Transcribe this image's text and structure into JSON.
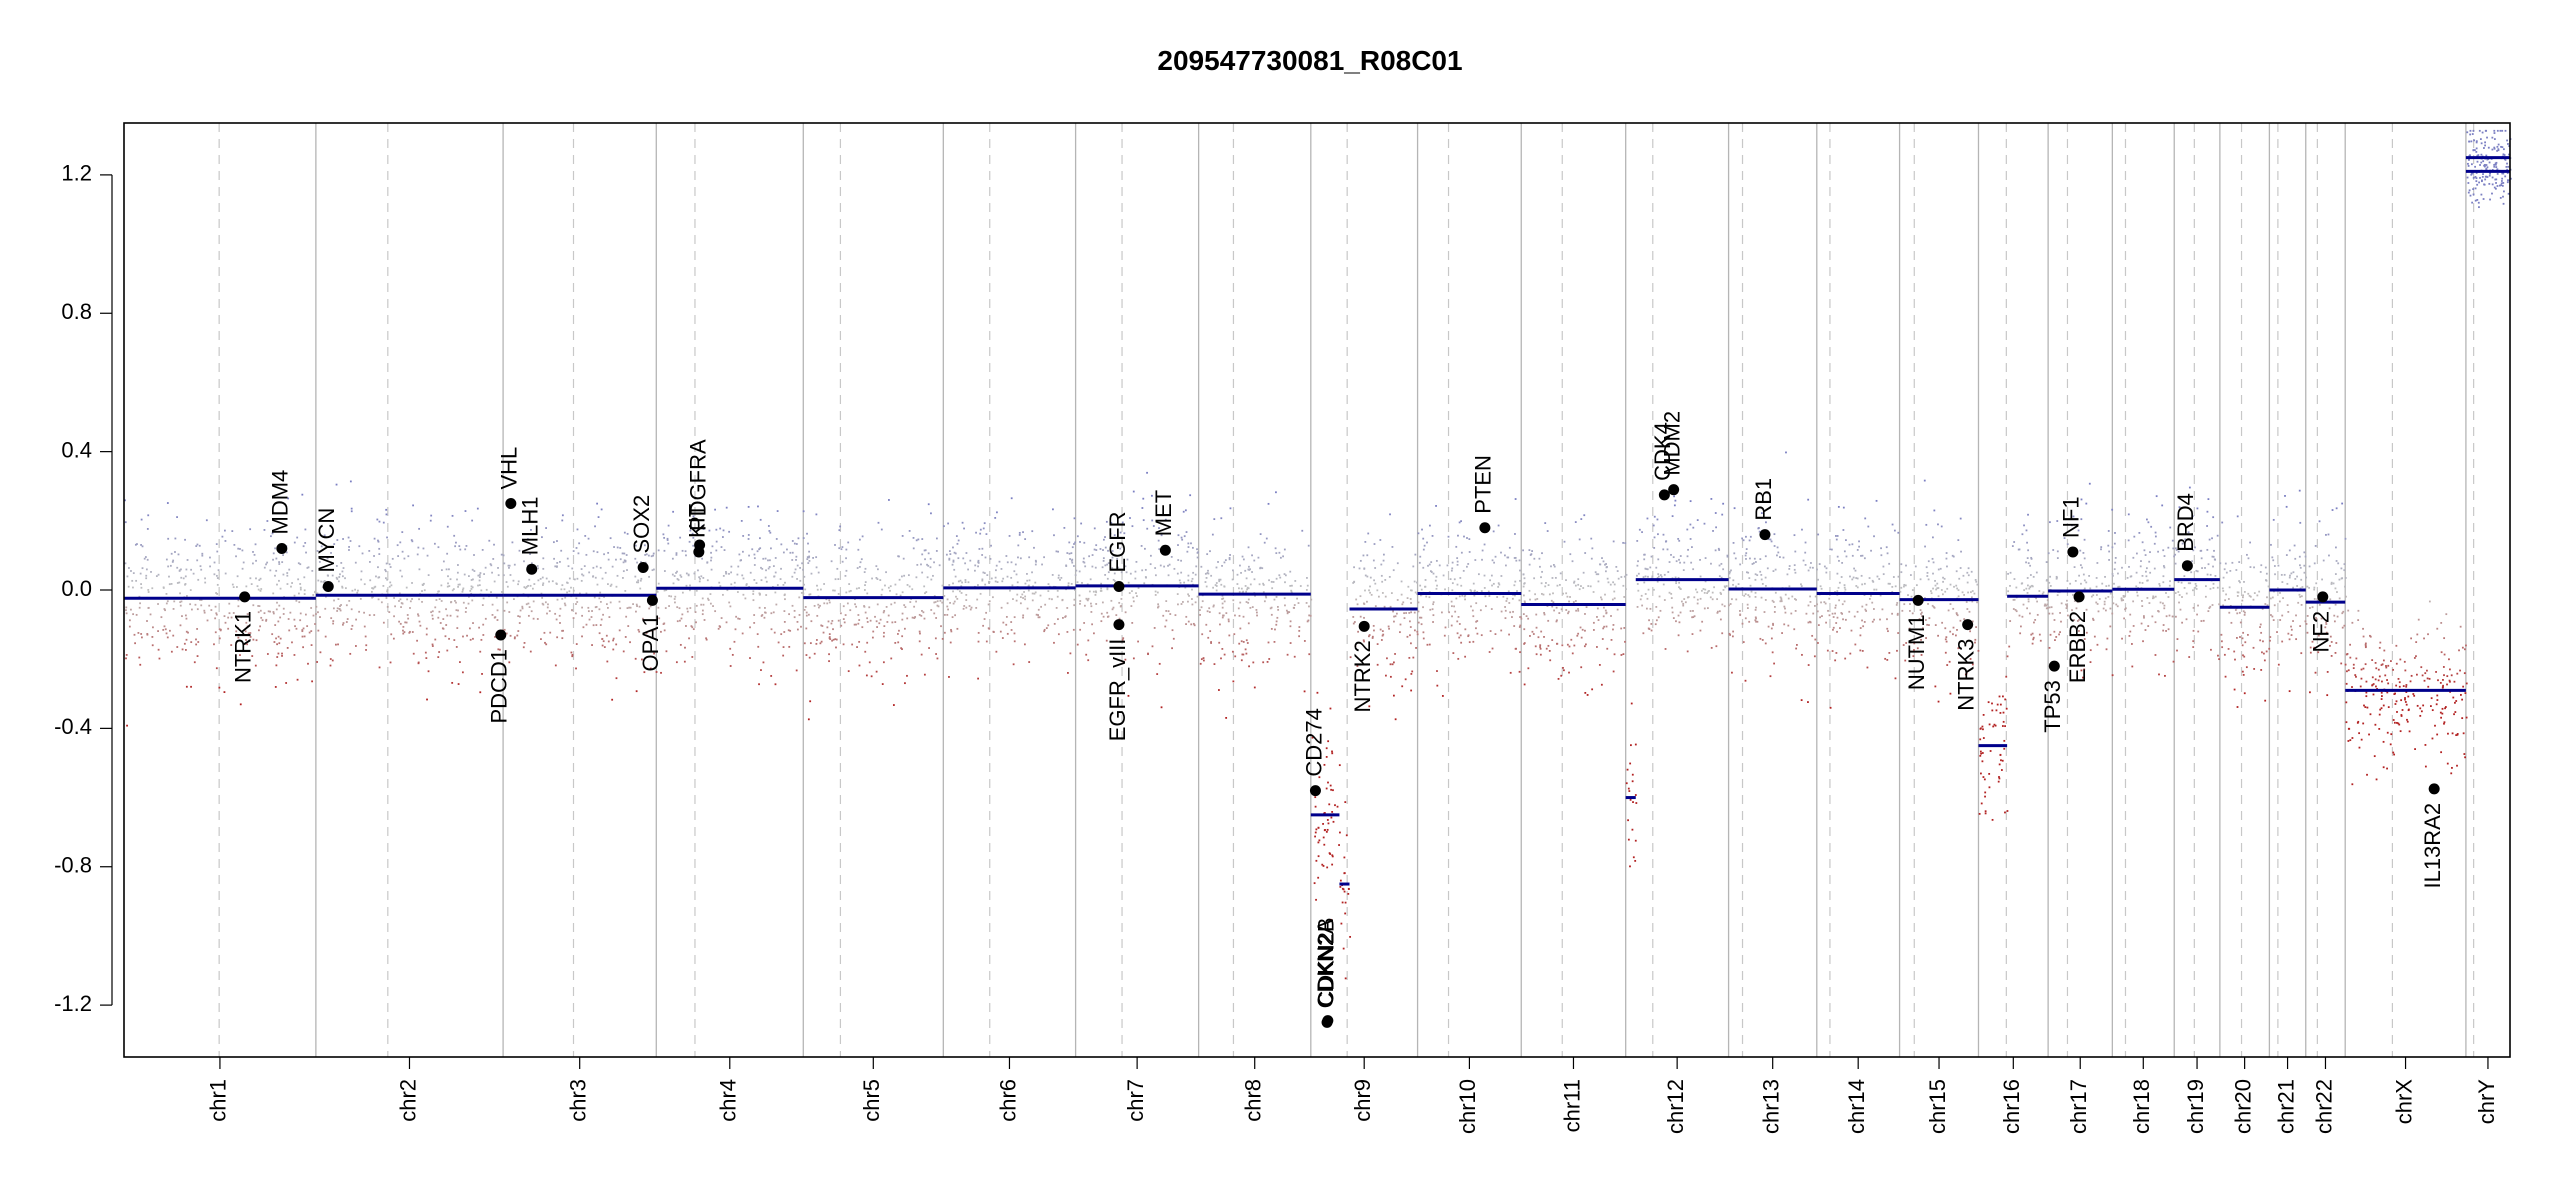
{
  "chart_data": {
    "type": "scatter",
    "title": "209547730081_R08C01",
    "ylim": [
      -1.35,
      1.35
    ],
    "yticks": [
      -1.2,
      -0.8,
      -0.4,
      0.0,
      0.4,
      0.8,
      1.2
    ],
    "ytick_labels": [
      "-1.2",
      "-0.8",
      "-0.4",
      "0.0",
      "0.4",
      "0.8",
      "1.2"
    ],
    "colors": {
      "segment": "#00008b",
      "gain": "#7b7fc2",
      "loss": "#b22222",
      "neutral": "#bfbfbf",
      "gene": "#000000",
      "boundary": "#b5b5b5",
      "centromere": "#c8c8c8"
    },
    "chromosomes": [
      {
        "name": "chr1",
        "label": "chr1",
        "start": 0,
        "end": 248,
        "centromere": 123,
        "segments": [
          {
            "from": 0,
            "to": 248,
            "y": -0.024
          }
        ]
      },
      {
        "name": "chr2",
        "label": "chr2",
        "start": 248,
        "end": 490,
        "centromere": 341,
        "segments": [
          {
            "from": 248,
            "to": 490,
            "y": -0.015
          }
        ]
      },
      {
        "name": "chr3",
        "label": "chr3",
        "start": 490,
        "end": 688,
        "centromere": 581,
        "segments": [
          {
            "from": 490,
            "to": 688,
            "y": -0.015
          }
        ]
      },
      {
        "name": "chr4",
        "label": "chr4",
        "start": 688,
        "end": 878,
        "centromere": 738,
        "segments": [
          {
            "from": 688,
            "to": 878,
            "y": 0.005
          }
        ]
      },
      {
        "name": "chr5",
        "label": "chr5",
        "start": 878,
        "end": 1059,
        "centromere": 926,
        "segments": [
          {
            "from": 878,
            "to": 1059,
            "y": -0.022
          }
        ]
      },
      {
        "name": "chr6",
        "label": "chr6",
        "start": 1059,
        "end": 1230,
        "centromere": 1119,
        "segments": [
          {
            "from": 1059,
            "to": 1230,
            "y": 0.006
          }
        ]
      },
      {
        "name": "chr7",
        "label": "chr7",
        "start": 1230,
        "end": 1389,
        "centromere": 1290,
        "segments": [
          {
            "from": 1230,
            "to": 1389,
            "y": 0.012
          }
        ]
      },
      {
        "name": "chr8",
        "label": "chr8",
        "start": 1389,
        "end": 1534,
        "centromere": 1434,
        "segments": [
          {
            "from": 1389,
            "to": 1534,
            "y": -0.012
          }
        ]
      },
      {
        "name": "chr9",
        "label": "chr9",
        "start": 1534,
        "end": 1672,
        "centromere": 1581,
        "segments": [
          {
            "from": 1534,
            "to": 1571,
            "y": -0.65
          },
          {
            "from": 1571,
            "to": 1584,
            "y": -0.85
          },
          {
            "from": 1584,
            "to": 1672,
            "y": -0.055
          }
        ]
      },
      {
        "name": "chr10",
        "label": "chr10",
        "start": 1672,
        "end": 1806,
        "centromere": 1712,
        "segments": [
          {
            "from": 1672,
            "to": 1806,
            "y": -0.01
          }
        ]
      },
      {
        "name": "chr11",
        "label": "chr11",
        "start": 1806,
        "end": 1941,
        "centromere": 1859,
        "segments": [
          {
            "from": 1806,
            "to": 1941,
            "y": -0.042
          }
        ]
      },
      {
        "name": "chr12",
        "label": "chr12",
        "start": 1941,
        "end": 2074,
        "centromere": 1976,
        "segments": [
          {
            "from": 1941,
            "to": 1954,
            "y": -0.6
          },
          {
            "from": 1954,
            "to": 2074,
            "y": 0.03
          }
        ]
      },
      {
        "name": "chr13",
        "label": "chr13",
        "start": 2074,
        "end": 2188,
        "centromere": 2092,
        "segments": [
          {
            "from": 2074,
            "to": 2188,
            "y": 0.003
          }
        ]
      },
      {
        "name": "chr14",
        "label": "chr14",
        "start": 2188,
        "end": 2295,
        "centromere": 2205,
        "segments": [
          {
            "from": 2188,
            "to": 2295,
            "y": -0.01
          }
        ]
      },
      {
        "name": "chr15",
        "label": "chr15",
        "start": 2295,
        "end": 2397,
        "centromere": 2314,
        "segments": [
          {
            "from": 2295,
            "to": 2397,
            "y": -0.028
          }
        ]
      },
      {
        "name": "chr16",
        "label": "chr16",
        "start": 2397,
        "end": 2487,
        "centromere": 2433,
        "segments": [
          {
            "from": 2397,
            "to": 2434,
            "y": -0.45
          },
          {
            "from": 2434,
            "to": 2487,
            "y": -0.018
          }
        ]
      },
      {
        "name": "chr17",
        "label": "chr17",
        "start": 2487,
        "end": 2570,
        "centromere": 2512,
        "segments": [
          {
            "from": 2487,
            "to": 2570,
            "y": -0.003
          }
        ]
      },
      {
        "name": "chr18",
        "label": "chr18",
        "start": 2570,
        "end": 2650,
        "centromere": 2587,
        "segments": [
          {
            "from": 2570,
            "to": 2650,
            "y": 0.002
          }
        ]
      },
      {
        "name": "chr19",
        "label": "chr19",
        "start": 2650,
        "end": 2709,
        "centromere": 2676,
        "segments": [
          {
            "from": 2650,
            "to": 2709,
            "y": 0.03
          }
        ]
      },
      {
        "name": "chr20",
        "label": "chr20",
        "start": 2709,
        "end": 2773,
        "centromere": 2737,
        "segments": [
          {
            "from": 2709,
            "to": 2773,
            "y": -0.05
          }
        ]
      },
      {
        "name": "chr21",
        "label": "chr21",
        "start": 2773,
        "end": 2820,
        "centromere": 2784,
        "segments": [
          {
            "from": 2773,
            "to": 2820,
            "y": 0.0
          }
        ]
      },
      {
        "name": "chr22",
        "label": "chr22",
        "start": 2820,
        "end": 2871,
        "centromere": 2835,
        "segments": [
          {
            "from": 2820,
            "to": 2871,
            "y": -0.035
          }
        ]
      },
      {
        "name": "chrX",
        "label": "chrX",
        "start": 2871,
        "end": 3027,
        "centromere": 2932,
        "segments": [
          {
            "from": 2871,
            "to": 3027,
            "y": -0.29
          }
        ]
      },
      {
        "name": "chrY",
        "label": "chrY",
        "start": 3027,
        "end": 3084,
        "centromere": 3037,
        "segments": [
          {
            "from": 3027,
            "to": 3084,
            "y": 1.21
          },
          {
            "from": 3027,
            "to": 3084,
            "y": 1.25
          }
        ]
      }
    ],
    "genes": [
      {
        "name": "NTRK1",
        "x": 156,
        "y": -0.02,
        "label_side": "below"
      },
      {
        "name": "MDM4",
        "x": 204,
        "y": 0.12,
        "label_side": "above"
      },
      {
        "name": "MYCN",
        "x": 264,
        "y": 0.01,
        "label_side": "above"
      },
      {
        "name": "PDCD1",
        "x": 487,
        "y": -0.13,
        "label_side": "below"
      },
      {
        "name": "VHL",
        "x": 500,
        "y": 0.25,
        "label_side": "above"
      },
      {
        "name": "MLH1",
        "x": 527,
        "y": 0.06,
        "label_side": "above"
      },
      {
        "name": "SOX2",
        "x": 671,
        "y": 0.065,
        "label_side": "above"
      },
      {
        "name": "OPA1",
        "x": 683,
        "y": -0.03,
        "label_side": "below"
      },
      {
        "name": "KIT",
        "x": 743,
        "y": 0.11,
        "label_side": "above"
      },
      {
        "name": "PDGFRA",
        "x": 744,
        "y": 0.13,
        "label_side": "above"
      },
      {
        "name": "EGFR",
        "x": 1286,
        "y": 0.01,
        "label_side": "above"
      },
      {
        "name": "EGFR_vIII",
        "x": 1286,
        "y": -0.1,
        "label_side": "below"
      },
      {
        "name": "MET",
        "x": 1346,
        "y": 0.115,
        "label_side": "above"
      },
      {
        "name": "CD274",
        "x": 1540,
        "y": -0.58,
        "label_side": "above"
      },
      {
        "name": "CDKN2A",
        "x": 1555,
        "y": -1.25,
        "label_side": "above"
      },
      {
        "name": "CDKN2B",
        "x": 1556,
        "y": -1.245,
        "label_side": "above"
      },
      {
        "name": "NTRK2",
        "x": 1603,
        "y": -0.105,
        "label_side": "below"
      },
      {
        "name": "PTEN",
        "x": 1759,
        "y": 0.18,
        "label_side": "above"
      },
      {
        "name": "CDK4",
        "x": 1991,
        "y": 0.275,
        "label_side": "above"
      },
      {
        "name": "MDM2",
        "x": 2003,
        "y": 0.29,
        "label_side": "above"
      },
      {
        "name": "RB1",
        "x": 2121,
        "y": 0.16,
        "label_side": "above"
      },
      {
        "name": "NUTM1",
        "x": 2319,
        "y": -0.03,
        "label_side": "below"
      },
      {
        "name": "NTRK3",
        "x": 2383,
        "y": -0.1,
        "label_side": "below"
      },
      {
        "name": "TP53",
        "x": 2495,
        "y": -0.22,
        "label_side": "below"
      },
      {
        "name": "NF1",
        "x": 2519,
        "y": 0.11,
        "label_side": "above"
      },
      {
        "name": "ERBB2",
        "x": 2527,
        "y": -0.02,
        "label_side": "below"
      },
      {
        "name": "BRD4",
        "x": 2667,
        "y": 0.07,
        "label_side": "above"
      },
      {
        "name": "NF2",
        "x": 2842,
        "y": -0.02,
        "label_side": "below"
      },
      {
        "name": "IL13RA2",
        "x": 2986,
        "y": -0.575,
        "label_side": "below"
      }
    ]
  }
}
